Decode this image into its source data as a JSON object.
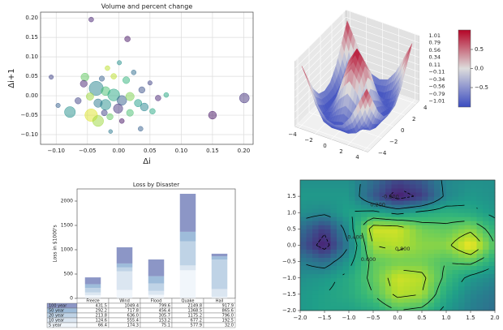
{
  "chart_data": [
    {
      "type": "scatter",
      "title": "Volume and percent change",
      "xlabel": "Δi",
      "ylabel": "Δi+1",
      "x": [
        -0.044,
        0.014,
        -0.108,
        -0.097,
        -0.078,
        0.201,
        0.15,
        -0.044,
        -0.033,
        -0.013,
        0.035,
        0.054,
        0.05,
        -0.054,
        -0.056,
        -0.036,
        -0.021,
        -0.008,
        0.005,
        0.018,
        0.031,
        0.037,
        0.012,
        -0.008,
        0.024,
        -0.021,
        -0.001,
        0.018,
        -0.033,
        -0.046,
        -0.065,
        0.041,
        0.063,
        0.076,
        0.005,
        -0.014,
        -0.027,
        0.001,
        -0.018,
        -0.023
      ],
      "y": [
        0.196,
        0.146,
        0.048,
        -0.025,
        -0.042,
        -0.006,
        -0.05,
        -0.05,
        -0.065,
        -0.092,
        -0.085,
        -0.04,
        0.033,
        0.048,
        0.031,
        0.019,
        0.012,
        0.002,
        -0.012,
        -0.002,
        -0.019,
        0.015,
        0.04,
        0.05,
        0.06,
        -0.023,
        -0.033,
        -0.044,
        -0.019,
        -0.002,
        -0.013,
        -0.029,
        -0.006,
        0.002,
        -0.065,
        -0.054,
        0.044,
        0.085,
        0.071,
        -0.044
      ],
      "sizes": [
        30,
        40,
        25,
        25,
        150,
        120,
        80,
        200,
        150,
        20,
        30,
        40,
        25,
        80,
        60,
        250,
        100,
        180,
        120,
        90,
        70,
        50,
        60,
        40,
        30,
        140,
        110,
        60,
        90,
        70,
        50,
        80,
        40,
        30,
        30,
        50,
        35,
        25,
        30,
        45
      ],
      "c": [
        0.1,
        0.05,
        0.2,
        0.3,
        0.5,
        0.15,
        0.05,
        0.95,
        0.85,
        0.4,
        0.3,
        0.6,
        0.2,
        0.75,
        0.1,
        0.45,
        0.7,
        0.6,
        0.3,
        0.8,
        0.55,
        0.25,
        0.65,
        0.9,
        0.35,
        0.5,
        0.15,
        0.7,
        0.4,
        0.85,
        0.2,
        0.45,
        0.1,
        0.6,
        0.05,
        0.75,
        0.3,
        0.5,
        0.9,
        0.2
      ],
      "colormap": [
        "#440154",
        "#482878",
        "#3e4989",
        "#31688e",
        "#26828e",
        "#1f9e89",
        "#35b779",
        "#6ece58",
        "#b5de2b",
        "#fde725"
      ],
      "alpha": 0.5,
      "grid": true,
      "xlim": [
        -0.125,
        0.215
      ],
      "ylim": [
        -0.125,
        0.215
      ],
      "xticks": [
        {
          "value": -0.1,
          "label": "−0.10"
        },
        {
          "value": -0.05,
          "label": "−0.05"
        },
        {
          "value": 0,
          "label": "0.00"
        },
        {
          "value": 0.05,
          "label": "0.05"
        },
        {
          "value": 0.1,
          "label": "0.10"
        },
        {
          "value": 0.15,
          "label": "0.15"
        },
        {
          "value": 0.2,
          "label": "0.20"
        }
      ],
      "yticks": [
        {
          "value": -0.1,
          "label": "−0.10"
        },
        {
          "value": -0.05,
          "label": "−0.05"
        },
        {
          "value": 0,
          "label": "0.00"
        },
        {
          "value": 0.05,
          "label": "0.05"
        },
        {
          "value": 0.1,
          "label": "0.10"
        },
        {
          "value": 0.15,
          "label": "0.15"
        },
        {
          "value": 0.2,
          "label": "0.20"
        }
      ]
    },
    {
      "type": "surface3d",
      "x": [
        -4,
        -3,
        -2,
        -1,
        0,
        1,
        2,
        3,
        4
      ],
      "y": [
        -4,
        -3,
        -2,
        -1,
        0,
        1,
        2,
        3,
        4
      ],
      "z": [
        [
          0.81,
          0.28,
          -0.24,
          -0.57,
          -0.65,
          -0.57,
          -0.24,
          0.28,
          0.81
        ],
        [
          0.28,
          -0.45,
          -0.9,
          -1.0,
          -0.99,
          -1.0,
          -0.9,
          -0.45,
          0.28
        ],
        [
          -0.24,
          -0.9,
          -0.95,
          -0.62,
          -0.42,
          -0.62,
          -0.95,
          -0.9,
          -0.24
        ],
        [
          -0.57,
          -1.0,
          -0.62,
          0.16,
          0.54,
          0.16,
          -0.62,
          -1.0,
          -0.57
        ],
        [
          -0.65,
          -0.99,
          -0.42,
          0.54,
          1.0,
          0.54,
          -0.42,
          -0.99,
          -0.65
        ],
        [
          -0.57,
          -1.0,
          -0.62,
          0.16,
          0.54,
          0.16,
          -0.62,
          -1.0,
          -0.57
        ],
        [
          -0.24,
          -0.9,
          -0.95,
          -0.62,
          -0.42,
          -0.62,
          -0.95,
          -0.9,
          -0.24
        ],
        [
          0.28,
          -0.45,
          -0.9,
          -1.0,
          -0.99,
          -1.0,
          -0.9,
          -0.45,
          0.28
        ],
        [
          0.81,
          0.28,
          -0.24,
          -0.57,
          -0.65,
          -0.57,
          -0.24,
          0.28,
          0.81
        ]
      ],
      "xlim": [
        -4.5,
        4.5
      ],
      "ylim": [
        -4.5,
        4.5
      ],
      "zlim": [
        -1.01,
        1.01
      ],
      "xticks": [
        {
          "value": -4,
          "label": "−4"
        },
        {
          "value": -2,
          "label": "−2"
        },
        0,
        2,
        4
      ],
      "yticks": [
        {
          "value": -4,
          "label": "−4"
        },
        {
          "value": -2,
          "label": "−2"
        },
        0,
        2,
        4
      ],
      "zticks": [
        1.01,
        0.79,
        0.56,
        0.34,
        0.11,
        {
          "value": -0.11,
          "label": "−0.11"
        },
        {
          "value": -0.34,
          "label": "−0.34"
        },
        {
          "value": -0.56,
          "label": "−0.56"
        },
        {
          "value": -0.79,
          "label": "−0.79"
        },
        {
          "value": -1.01,
          "label": "−1.01"
        }
      ],
      "colormap": [
        "#3b4cc0",
        "#dddcdc",
        "#b40426"
      ],
      "clim": [
        -1.01,
        1.01
      ],
      "colorbar_ticks": [
        0.5,
        {
          "value": 0,
          "label": "0.0"
        },
        {
          "value": -0.5,
          "label": "−0.5"
        }
      ]
    },
    {
      "type": "stacked_bar_table",
      "title": "Loss by Disaster",
      "ylabel": "Loss in $1000's",
      "categories": [
        "Freeze",
        "Wind",
        "Flood",
        "Quake",
        "Hail"
      ],
      "series": [
        {
          "name": "100 year",
          "color": "#8c96c6",
          "values": [
            139.3,
            331.6,
            343.2,
            781.3,
            52.3
          ],
          "table_cells": [
            "431.5",
            "1049.4",
            "799.6",
            "2149.8",
            "917.9"
          ]
        },
        {
          "name": "50 year",
          "color": "#9ebcda",
          "values": [
            78.4,
            81.8,
            150.7,
            193.3,
            69.6
          ],
          "table_cells": [
            "292.2",
            "717.8",
            "456.4",
            "1368.5",
            "865.6"
          ]
        },
        {
          "name": "20 year",
          "color": "#bfd3e6",
          "values": [
            89.2,
            80.6,
            152.5,
            498.0,
            603.5
          ],
          "table_cells": [
            "213.8",
            "636.0",
            "305.7",
            "1175.2",
            "796.0"
          ]
        },
        {
          "name": "10 year",
          "color": "#dbe6f1",
          "values": [
            58.2,
            381.1,
            78.1,
            99.3,
            160.5
          ],
          "table_cells": [
            "124.6",
            "555.4",
            "153.2",
            "677.2",
            "192.5"
          ]
        },
        {
          "name": "5 year",
          "color": "#f1f6fb",
          "values": [
            66.4,
            174.3,
            75.1,
            577.9,
            32.0
          ],
          "table_cells": [
            "66.4",
            "174.3",
            "75.1",
            "577.9",
            "32.0"
          ]
        }
      ],
      "ylim": [
        0,
        2250
      ],
      "yticks": [
        0,
        500,
        1000,
        1500,
        2000
      ]
    },
    {
      "type": "contour",
      "x": [
        -2,
        -1.5,
        -1,
        -0.5,
        0,
        0.5,
        1,
        1.5,
        2
      ],
      "y": [
        -2,
        -1.5,
        -1,
        -0.5,
        0,
        0.5,
        1,
        1.5,
        2
      ],
      "z": [
        [
          0.35,
          0.4,
          0.4,
          0.45,
          0.6,
          0.55,
          0.35,
          0.2,
          0.1
        ],
        [
          0.35,
          0.4,
          0.45,
          0.6,
          0.85,
          0.8,
          0.45,
          0.25,
          0.15
        ],
        [
          0.3,
          0.35,
          0.45,
          0.65,
          0.9,
          0.85,
          0.55,
          0.35,
          0.25
        ],
        [
          0.2,
          0.1,
          0.35,
          0.65,
          0.7,
          0.7,
          0.6,
          0.65,
          0.45
        ],
        [
          0.0,
          -0.3,
          0.2,
          0.8,
          0.85,
          0.75,
          0.75,
          1.0,
          0.6
        ],
        [
          0.1,
          -0.15,
          0.3,
          0.9,
          0.9,
          0.7,
          0.65,
          0.75,
          0.5
        ],
        [
          0.3,
          0.25,
          0.4,
          0.45,
          0.35,
          0.45,
          0.5,
          0.45,
          0.35
        ],
        [
          0.35,
          0.35,
          0.35,
          0.0,
          -0.3,
          -0.15,
          0.25,
          0.35,
          0.3
        ],
        [
          0.3,
          0.3,
          0.3,
          0.1,
          -0.1,
          0.0,
          0.25,
          0.3,
          0.3
        ]
      ],
      "colormap": [
        "#440154",
        "#482878",
        "#3e4989",
        "#31688e",
        "#26828e",
        "#1f9e89",
        "#35b779",
        "#6ece58",
        "#b5de2b",
        "#fde725"
      ],
      "clim": [
        -0.4,
        1.0
      ],
      "levels": [
        {
          "value": -0.2,
          "label": "-0.200"
        },
        {
          "value": 0.2,
          "label": "0.200"
        },
        {
          "value": 0.4,
          "label": "0.400"
        },
        {
          "value": 0.6,
          "label": "0.600"
        },
        {
          "value": 0.8,
          "label": "0.800"
        }
      ],
      "xlim": [
        -2,
        2
      ],
      "ylim": [
        -2,
        2
      ],
      "xticks": [
        {
          "value": -2,
          "label": "−2.0"
        },
        {
          "value": -1.5,
          "label": "−1.5"
        },
        {
          "value": -1,
          "label": "−1.0"
        },
        {
          "value": -0.5,
          "label": "−0.5"
        },
        {
          "value": 0,
          "label": "0.0"
        },
        0.5,
        {
          "value": 1,
          "label": "1.0"
        },
        1.5,
        {
          "value": 2,
          "label": "2.0"
        }
      ],
      "yticks": [
        {
          "value": -2,
          "label": "−2.0"
        },
        {
          "value": -1.5,
          "label": "−1.5"
        },
        {
          "value": -1,
          "label": "−1.0"
        },
        {
          "value": -0.5,
          "label": "−0.5"
        },
        {
          "value": 0,
          "label": "0.0"
        },
        0.5,
        {
          "value": 1,
          "label": "1.0"
        },
        1.5
      ]
    }
  ]
}
